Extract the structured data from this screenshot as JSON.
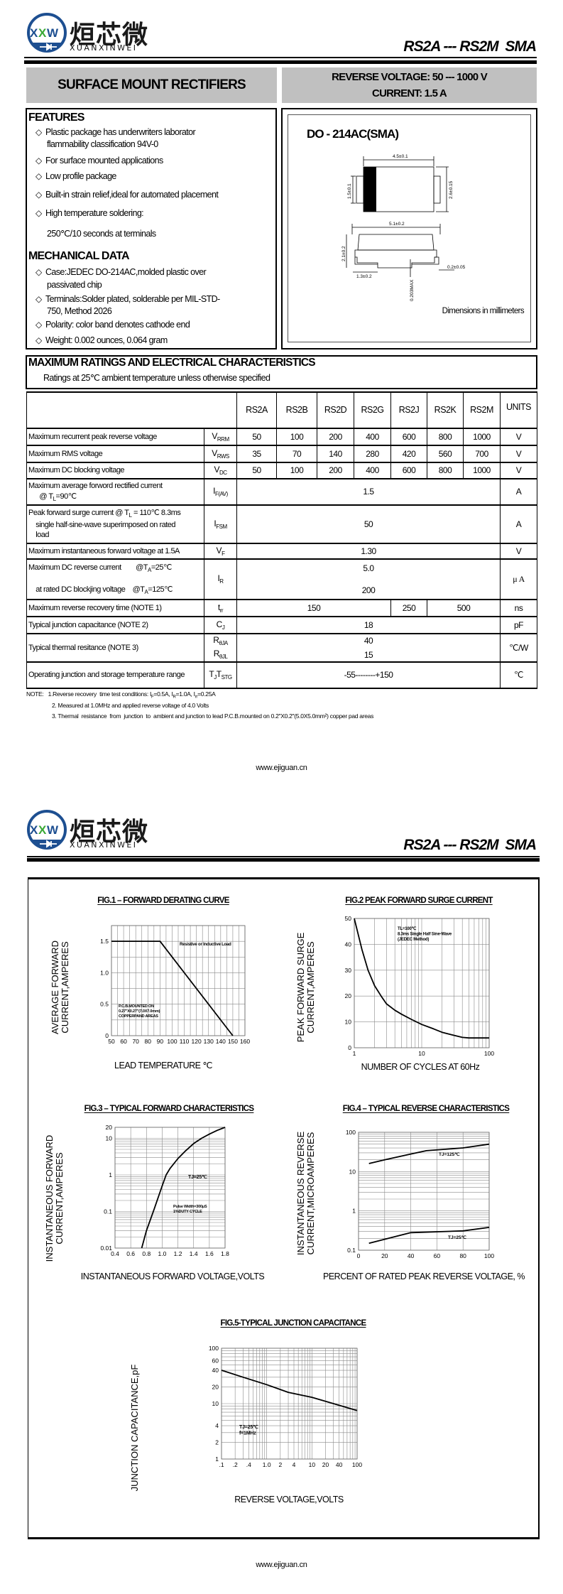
{
  "logo": {
    "chinese": "烜芯微",
    "latin": "XUANXINWEI",
    "mark": "XXW",
    "colors": {
      "blue": "#1d4f91",
      "green": "#3aa935"
    }
  },
  "page1": {
    "doc_title": "RS2A --- RS2M  SMA",
    "banner_left": "SURFACE MOUNT RECTIFIERS",
    "banner_right": [
      "REVERSE VOLTAGE: 50 --- 1000 V",
      "CURRENT: 1.5 A"
    ],
    "features": {
      "heading": "FEATURES",
      "items": [
        [
          "Plastic package has underwriters laborator",
          "flammability classification 94V-0"
        ],
        [
          "For surface mounted applications"
        ],
        [
          "Low profile package"
        ],
        [
          "Built-in strain relief,ideal for automated placement"
        ],
        [
          "High temperature soldering:",
          "250℃/10 seconds at terminals"
        ]
      ]
    },
    "mechanical": {
      "heading": "MECHANICAL DATA",
      "items": [
        [
          "Case:JEDEC DO-214AC,molded plastic over",
          "passivated chip"
        ],
        [
          "Terminals:Solder plated, solderable per MIL-STD-",
          "750, Method 2026"
        ],
        [
          "Polarity: color band denotes cathode end"
        ],
        [
          "Weight: 0.002 ounces, 0.064 gram"
        ]
      ]
    },
    "package": {
      "name": "DO - 214AC(SMA)",
      "dims": {
        "top_width": "4.5±0.1",
        "lead_height": "1.5±0.1",
        "body_height": "2.6±0.15",
        "total_length": "5.1±0.2",
        "thickness": "2.1±0.2",
        "lead_length": "1.3±0.2",
        "lead_thick": "0.2±0.05",
        "standoff": "0.203MAX"
      },
      "units_note": "Dimensions in millimeters"
    },
    "ratings": {
      "title": "MAXIMUM RATINGS AND ELECTRICAL CHARACTERISTICS",
      "subtitle": "Ratings at 25℃ ambient temperature unless otherwise specified"
    },
    "footer": "www.ejiguan.cn"
  },
  "table": {
    "columns": [
      "RS2A",
      "RS2B",
      "RS2D",
      "RS2G",
      "RS2J",
      "RS2K",
      "RS2M"
    ],
    "units_header": "UNITS",
    "rows": [
      {
        "label": [
          [
            {
              "t": "Maximum recurrent peak reverse voltage"
            }
          ]
        ],
        "symbol": [
          [
            {
              "t": "V"
            },
            {
              "sub": "RRM"
            }
          ]
        ],
        "groups": [
          {
            "v": [
              "50"
            ],
            "span": 1
          },
          {
            "v": [
              "100"
            ],
            "span": 1
          },
          {
            "v": [
              "200"
            ],
            "span": 1
          },
          {
            "v": [
              "400"
            ],
            "span": 1
          },
          {
            "v": [
              "600"
            ],
            "span": 1
          },
          {
            "v": [
              "800"
            ],
            "span": 1
          },
          {
            "v": [
              "1000"
            ],
            "span": 1
          }
        ],
        "unit": "V"
      },
      {
        "label": [
          [
            {
              "t": "Maximum RMS voltage"
            }
          ]
        ],
        "symbol": [
          [
            {
              "t": "V"
            },
            {
              "sub": "RWS"
            }
          ]
        ],
        "groups": [
          {
            "v": [
              "35"
            ],
            "span": 1
          },
          {
            "v": [
              "70"
            ],
            "span": 1
          },
          {
            "v": [
              "140"
            ],
            "span": 1
          },
          {
            "v": [
              "280"
            ],
            "span": 1
          },
          {
            "v": [
              "420"
            ],
            "span": 1
          },
          {
            "v": [
              "560"
            ],
            "span": 1
          },
          {
            "v": [
              "700"
            ],
            "span": 1
          }
        ],
        "unit": "V"
      },
      {
        "label": [
          [
            {
              "t": "Maximum DC blocking voltage"
            }
          ]
        ],
        "symbol": [
          [
            {
              "t": "V"
            },
            {
              "sub": "DC"
            }
          ]
        ],
        "groups": [
          {
            "v": [
              "50"
            ],
            "span": 1
          },
          {
            "v": [
              "100"
            ],
            "span": 1
          },
          {
            "v": [
              "200"
            ],
            "span": 1
          },
          {
            "v": [
              "400"
            ],
            "span": 1
          },
          {
            "v": [
              "600"
            ],
            "span": 1
          },
          {
            "v": [
              "800"
            ],
            "span": 1
          },
          {
            "v": [
              "1000"
            ],
            "span": 1
          }
        ],
        "unit": "V"
      },
      {
        "label": [
          [
            {
              "t": "Maximum average forword rectified current"
            }
          ],
          [
            {
              "t": "      @ T"
            },
            {
              "sub": "L"
            },
            {
              "t": "=90℃"
            }
          ]
        ],
        "symbol": [
          [
            {
              "t": "I"
            },
            {
              "sub": "F(AV)"
            }
          ]
        ],
        "groups": [
          {
            "v": [
              "1.5"
            ],
            "span": 7
          }
        ],
        "unit": "A"
      },
      {
        "label": [
          [
            {
              "t": "Peak forward surge current @ T"
            },
            {
              "sub": "L"
            },
            {
              "t": " = 110℃ 8.3ms"
            }
          ],
          [
            {
              "t": "    single half-sine-wave superimposed on rated"
            }
          ],
          [
            {
              "t": "    load"
            }
          ]
        ],
        "symbol": [
          [
            {
              "t": "I"
            },
            {
              "sub": "FSM"
            }
          ]
        ],
        "groups": [
          {
            "v": [
              "50"
            ],
            "span": 7
          }
        ],
        "unit": "A"
      },
      {
        "label": [
          [
            {
              "t": "Maximum instantaneous forward voltage at 1.5A"
            }
          ]
        ],
        "symbol": [
          [
            {
              "t": "V"
            },
            {
              "sub": "F"
            }
          ]
        ],
        "groups": [
          {
            "v": [
              "1.30"
            ],
            "span": 7
          }
        ],
        "unit": "V"
      },
      {
        "label": [
          [
            {
              "t": "Maximum DC reverse current        @T"
            },
            {
              "sub": "A"
            },
            {
              "t": "=25℃"
            }
          ],
          [
            {
              "t": "    at rated DC blockjing voltage    @T"
            },
            {
              "sub": "A"
            },
            {
              "t": "=125℃"
            }
          ]
        ],
        "symbol": [
          [
            {
              "t": "I"
            },
            {
              "sub": "R"
            }
          ]
        ],
        "groups": [
          {
            "v": [
              "5.0",
              "200"
            ],
            "span": 7
          }
        ],
        "unit": "μ A"
      },
      {
        "label": [
          [
            {
              "t": "Maximum reverse recovery time (NOTE 1)"
            }
          ]
        ],
        "symbol": [
          [
            {
              "t": "t"
            },
            {
              "sub": "rr"
            }
          ]
        ],
        "groups": [
          {
            "v": [
              "150"
            ],
            "span": 4
          },
          {
            "v": [
              "250"
            ],
            "span": 1
          },
          {
            "v": [
              "500"
            ],
            "span": 2
          }
        ],
        "unit": "ns"
      },
      {
        "label": [
          [
            {
              "t": "Typical junction capacitance (NOTE 2)"
            }
          ]
        ],
        "symbol": [
          [
            {
              "t": "C"
            },
            {
              "sub": "J"
            }
          ]
        ],
        "groups": [
          {
            "v": [
              "18"
            ],
            "span": 7
          }
        ],
        "unit": "pF"
      },
      {
        "label": [
          [
            {
              "t": "Typical thermal resitance (NOTE 3)"
            }
          ]
        ],
        "symbol": [
          [
            {
              "t": "R"
            },
            {
              "sub": "θJA"
            }
          ],
          [
            {
              "t": "R"
            },
            {
              "sub": "θJL"
            }
          ]
        ],
        "groups": [
          {
            "v": [
              "40",
              "15"
            ],
            "span": 7
          }
        ],
        "unit": "℃/W"
      },
      {
        "label": [
          [
            {
              "t": "Operating junction and storage temperature range"
            }
          ]
        ],
        "symbol": [
          [
            {
              "t": "T"
            },
            {
              "sub": "J"
            },
            {
              "t": "T"
            },
            {
              "sub": "STG"
            }
          ]
        ],
        "groups": [
          {
            "v": [
              "-55--------+150"
            ],
            "span": 7
          }
        ],
        "unit": "℃"
      }
    ]
  },
  "notes": [
    [
      {
        "t": "NOTE:   1.Reverse recovery  time test conditions: I"
      },
      {
        "sub": "F"
      },
      {
        "t": "=0.5A, I"
      },
      {
        "sub": "R"
      },
      {
        "t": "=1.0A, I"
      },
      {
        "sub": "rr"
      },
      {
        "t": "=0.25A"
      }
    ],
    [
      {
        "t": "2. Measured at 1.0MHz and applied reverse voltage of 4.0 Volts"
      }
    ],
    [
      {
        "t": "3. Thermal  resistance  from  junction  to  ambient and junction to lead P.C.B.mounted on 0.2\"X0.2\"(5.0X5.0mm²) copper pad areas"
      }
    ]
  ],
  "page2": {
    "doc_title": "RS2A --- RS2M  SMA",
    "footer": "www.ejiguan.cn"
  },
  "chart_data": [
    {
      "type": "line",
      "title": "FIG.1 – FORWARD DERATING CURVE",
      "xlabel": "LEAD TEMPERATURE  ℃",
      "ylabel": [
        "AVERAGE FORWARD",
        "CURRENT,AMPERES"
      ],
      "xscale": "linear",
      "yscale": "linear",
      "xlim": [
        50,
        160
      ],
      "ylim": [
        0,
        1.75
      ],
      "grid": true,
      "xticks": [
        50,
        60,
        70,
        80,
        90,
        100,
        110,
        120,
        130,
        140,
        150,
        160
      ],
      "xticklabels": [
        "50",
        "60",
        "70",
        "80",
        "90",
        "100",
        "110",
        "120",
        "130",
        "140",
        "150",
        "160"
      ],
      "yticks": [
        0,
        0.5,
        1.0,
        1.5
      ],
      "yticklabels": [
        "0",
        "0.5",
        "1.0",
        "1.5"
      ],
      "series": [
        {
          "x": [
            50,
            90,
            150
          ],
          "y": [
            1.5,
            1.5,
            0
          ]
        }
      ],
      "annotations": [
        [
          "Resistive or Inductive Load"
        ],
        [
          "P.C.B.MOUNTED ON",
          "0.27\"X0.27\"(7.0X7.0mm)",
          "COPPERPAND AREAS"
        ]
      ]
    },
    {
      "type": "line",
      "title": "FIG.2 PEAK FORWARD SURGE CURRENT",
      "xlabel": "NUMBER  OF  CYCLES AT 60Hz",
      "ylabel": [
        "PEAK FORWARD SURGE",
        "CURRENT,AMPERES"
      ],
      "xscale": "log",
      "yscale": "linear",
      "xlim": [
        1,
        100
      ],
      "ylim": [
        0,
        50
      ],
      "grid": true,
      "xticks": [
        1,
        10,
        100
      ],
      "xticklabels": [
        "1",
        "10",
        "100"
      ],
      "yticks": [
        0,
        10,
        20,
        30,
        40,
        50
      ],
      "yticklabels": [
        "0",
        "10",
        "20",
        "30",
        "40",
        "50"
      ],
      "series": [
        {
          "x": [
            1,
            1.3,
            1.6,
            2,
            2.5,
            3,
            4,
            5,
            7,
            10,
            15,
            20,
            30,
            40,
            50,
            100
          ],
          "y": [
            50,
            38,
            30,
            24,
            20,
            17,
            14.5,
            13,
            11,
            9,
            7.3,
            6,
            4.8,
            4,
            3.8,
            3.8
          ]
        }
      ],
      "annotations": [
        [
          "TL=100℃",
          "8.3ms Single Half Sine-Wave",
          "(JEDEC Method)"
        ]
      ]
    },
    {
      "type": "line",
      "title": "FIG.3 – TYPICAL FORWARD CHARACTERISTICS",
      "xlabel": "INSTANTANEOUS FORWARD VOLTAGE,VOLTS",
      "ylabel": [
        "INSTANTANEOUS FORWARD",
        "CURRENT,AMPERES"
      ],
      "xscale": "linear",
      "yscale": "log",
      "xlim": [
        0.4,
        1.8
      ],
      "ylim": [
        0.01,
        20
      ],
      "grid": true,
      "xticks": [
        0.4,
        0.6,
        0.8,
        1.0,
        1.2,
        1.4,
        1.6,
        1.8
      ],
      "xticklabels": [
        "0.4",
        "0.6",
        "0.8",
        "1.0",
        "1.2",
        "1.4",
        "1.6",
        "1.8"
      ],
      "yticks": [
        0.01,
        0.1,
        1,
        10,
        20
      ],
      "yticklabels": [
        "0.01",
        "0.1",
        "1",
        "10",
        "20"
      ],
      "series": [
        {
          "x": [
            0.74,
            0.8,
            0.9,
            1.0,
            1.05,
            1.1,
            1.2,
            1.3,
            1.4,
            1.5,
            1.6,
            1.7,
            1.8
          ],
          "y": [
            0.01,
            0.03,
            0.12,
            0.5,
            1.0,
            1.5,
            2.8,
            4.6,
            7.2,
            10,
            13,
            16.5,
            20
          ]
        }
      ],
      "annotations": [
        [
          "TJ=25℃"
        ],
        [
          "Pulse Width=300μS",
          "1%DUTY CYCLE"
        ]
      ]
    },
    {
      "type": "line",
      "title": "FIG.4 – TYPICAL REVERSE  CHARACTERISTICS",
      "xlabel": "PERCENT  OF  RATED PEAK REVERSE VOLTAGE, %",
      "ylabel": [
        "INSTANTANEOUS REVERSE",
        "CURRENT,MICROAMPERES"
      ],
      "xscale": "linear",
      "yscale": "log",
      "xlim": [
        0,
        100
      ],
      "ylim": [
        0.1,
        100
      ],
      "grid": true,
      "xticks": [
        0,
        20,
        40,
        60,
        80,
        100
      ],
      "xticklabels": [
        "0",
        "20",
        "40",
        "60",
        "80",
        "100"
      ],
      "yticks": [
        0.1,
        1,
        10,
        100
      ],
      "yticklabels": [
        "0.1",
        "1",
        "10",
        "100"
      ],
      "series": [
        {
          "name": "TJ=125℃",
          "x": [
            8,
            20,
            40,
            52,
            80,
            100
          ],
          "y": [
            16,
            20,
            28,
            34,
            40,
            50
          ]
        },
        {
          "name": "TJ=25℃",
          "x": [
            8,
            20,
            40,
            80,
            100
          ],
          "y": [
            0.15,
            0.19,
            0.28,
            0.31,
            0.38
          ]
        }
      ],
      "annotations": []
    },
    {
      "type": "line",
      "title": "FIG.5-TYPICAL JUNCTION CAPACITANCE",
      "xlabel": "REVERSE VOLTAGE,VOLTS",
      "ylabel": [
        "JUNCTION CAPACITANCE,pF"
      ],
      "xscale": "log",
      "yscale": "log",
      "xlim": [
        0.1,
        100
      ],
      "ylim": [
        1,
        100
      ],
      "grid": true,
      "xticks": [
        0.1,
        0.2,
        0.4,
        1,
        2,
        4,
        10,
        20,
        40,
        100
      ],
      "xticklabels": [
        ".1",
        ".2",
        ".4",
        "1.0",
        "2",
        "4",
        "10",
        "20",
        "40",
        "100"
      ],
      "yticks": [
        1,
        2,
        4,
        10,
        20,
        40,
        60,
        100
      ],
      "yticklabels": [
        "1",
        "2",
        "4",
        "10",
        "20",
        "40",
        "60",
        "100"
      ],
      "series": [
        {
          "x": [
            0.1,
            0.3,
            1,
            3,
            10,
            30,
            100
          ],
          "y": [
            40,
            30,
            22,
            16,
            13,
            10,
            7.5
          ]
        }
      ],
      "annotations": [
        [
          "TJ=25℃",
          "f=1MHz"
        ]
      ]
    }
  ]
}
